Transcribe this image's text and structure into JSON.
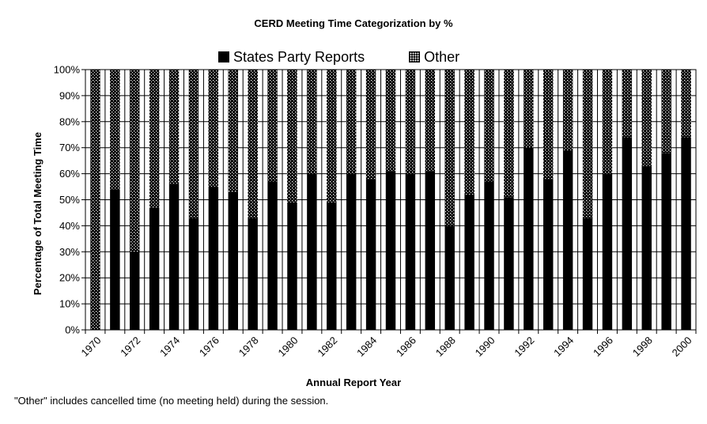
{
  "chart_data": {
    "type": "bar",
    "stacked": true,
    "title": "CERD Meeting Time Categorization by %",
    "xlabel": "Annual Report Year",
    "ylabel": "Percentage of Total Meeting Time",
    "ylim": [
      0,
      100
    ],
    "yticks": [
      "0%",
      "10%",
      "20%",
      "30%",
      "40%",
      "50%",
      "60%",
      "70%",
      "80%",
      "90%",
      "100%"
    ],
    "grid": true,
    "legend_position": "top",
    "categories": [
      "1970",
      "1971",
      "1972",
      "1973",
      "1974",
      "1975",
      "1976",
      "1977",
      "1978",
      "1979",
      "1980",
      "1981",
      "1982",
      "1983",
      "1984",
      "1985",
      "1986",
      "1987",
      "1988",
      "1989",
      "1990",
      "1991",
      "1992",
      "1993",
      "1994",
      "1995",
      "1996",
      "1997",
      "1998",
      "1999",
      "2000"
    ],
    "x_tick_labels": [
      "1970",
      "1972",
      "1974",
      "1976",
      "1978",
      "1980",
      "1982",
      "1984",
      "1986",
      "1988",
      "1990",
      "1992",
      "1994",
      "1996",
      "1998",
      "2000"
    ],
    "series": [
      {
        "name": "States Party Reports",
        "pattern": "solid",
        "color": "#000000",
        "values": [
          0,
          54,
          30,
          47,
          56,
          43,
          55,
          53,
          43,
          57,
          49,
          60,
          49,
          60,
          58,
          61,
          60,
          61,
          40,
          52,
          57,
          51,
          70,
          58,
          69,
          43,
          60,
          74,
          63,
          68,
          74
        ]
      },
      {
        "name": "Other",
        "pattern": "dots",
        "color": "#000000",
        "values": [
          100,
          46,
          70,
          53,
          44,
          57,
          45,
          47,
          57,
          43,
          51,
          40,
          51,
          40,
          42,
          39,
          40,
          39,
          60,
          48,
          43,
          49,
          30,
          42,
          31,
          57,
          40,
          26,
          37,
          32,
          26
        ]
      }
    ]
  },
  "legend": {
    "items": [
      "States Party Reports",
      "Other"
    ]
  },
  "footnote": "\"Other\" includes cancelled time (no meeting held) during the session."
}
